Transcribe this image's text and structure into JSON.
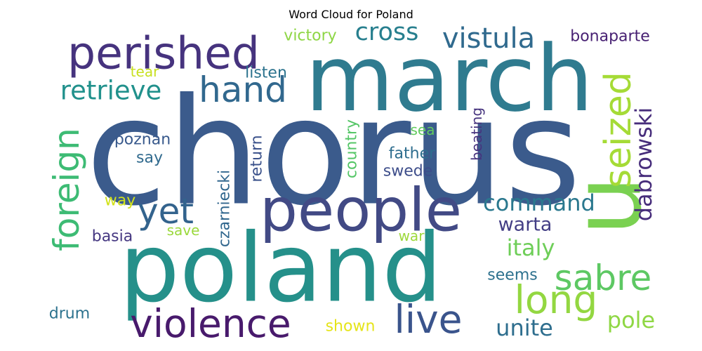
{
  "chart_data": {
    "type": "wordcloud",
    "title": "Word Cloud for Poland",
    "words": [
      {
        "text": "chorus",
        "color": "#3b5b8c"
      },
      {
        "text": "march",
        "color": "#2f7b8f"
      },
      {
        "text": "poland",
        "color": "#25908a"
      },
      {
        "text": "u",
        "color": "#7ad151"
      },
      {
        "text": "people",
        "color": "#424a85"
      },
      {
        "text": "perished",
        "color": "#46337e"
      },
      {
        "text": "foreign",
        "color": "#3dbb74"
      },
      {
        "text": "seized",
        "color": "#a5db36"
      },
      {
        "text": "violence",
        "color": "#481a6c"
      },
      {
        "text": "live",
        "color": "#3a548c"
      },
      {
        "text": "long",
        "color": "#93d741"
      },
      {
        "text": "sabre",
        "color": "#5dc863"
      },
      {
        "text": "yet",
        "color": "#33638d"
      },
      {
        "text": "hand",
        "color": "#31688e"
      },
      {
        "text": "vistula",
        "color": "#306a8e"
      },
      {
        "text": "cross",
        "color": "#277f8e"
      },
      {
        "text": "retrieve",
        "color": "#21918c"
      },
      {
        "text": "dabrowski",
        "color": "#472d7b"
      },
      {
        "text": "command",
        "color": "#2a788e"
      },
      {
        "text": "italy",
        "color": "#6ece58"
      },
      {
        "text": "warta",
        "color": "#433e85"
      },
      {
        "text": "unite",
        "color": "#2e6e8e"
      },
      {
        "text": "pole",
        "color": "#8fd744"
      },
      {
        "text": "victory",
        "color": "#8ed645"
      },
      {
        "text": "bonaparte",
        "color": "#482173"
      },
      {
        "text": "listen",
        "color": "#2c738e"
      },
      {
        "text": "tear",
        "color": "#c8e020"
      },
      {
        "text": "poznan",
        "color": "#38598c"
      },
      {
        "text": "say",
        "color": "#306a8e"
      },
      {
        "text": "czarniecki",
        "color": "#31678e"
      },
      {
        "text": "return",
        "color": "#3b528b"
      },
      {
        "text": "country",
        "color": "#55c667"
      },
      {
        "text": "sea",
        "color": "#62cb5f"
      },
      {
        "text": "father",
        "color": "#2e6d8e"
      },
      {
        "text": "beating",
        "color": "#46337e"
      },
      {
        "text": "swede",
        "color": "#3d4d8a"
      },
      {
        "text": "way",
        "color": "#d2e21b"
      },
      {
        "text": "basia",
        "color": "#453781"
      },
      {
        "text": "save",
        "color": "#9bd93c"
      },
      {
        "text": "war",
        "color": "#9dd93b"
      },
      {
        "text": "seems",
        "color": "#2d718e"
      },
      {
        "text": "drum",
        "color": "#2c728e"
      },
      {
        "text": "shown",
        "color": "#e5e419"
      }
    ]
  }
}
